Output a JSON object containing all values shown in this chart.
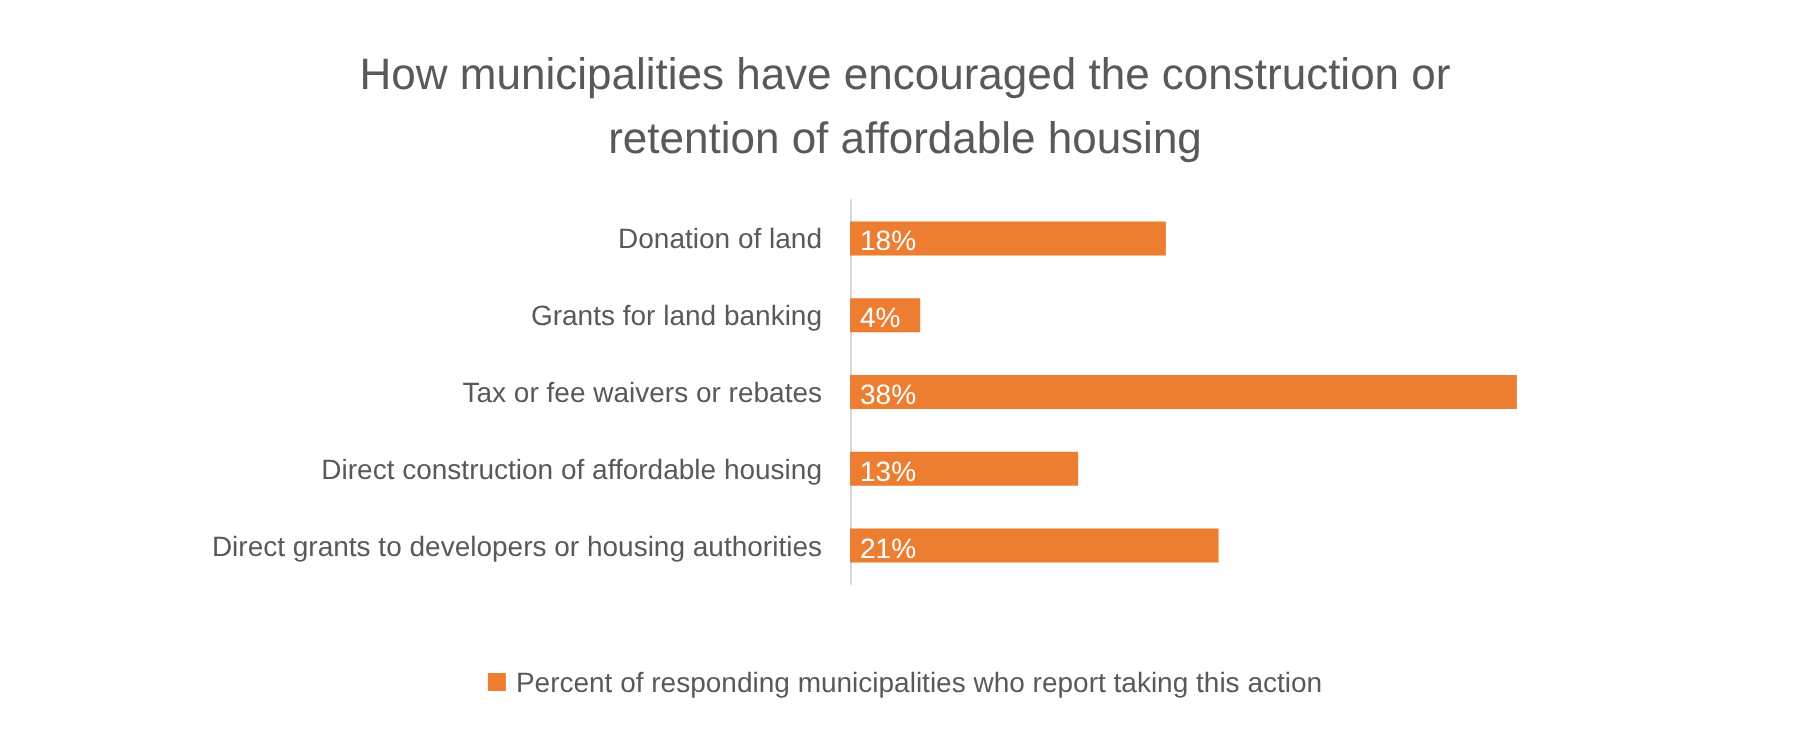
{
  "chart_data": {
    "type": "bar",
    "orientation": "horizontal",
    "title": "How municipalities have encouraged the construction or\nretention of affordable housing",
    "categories": [
      "Donation of land",
      "Grants for land banking",
      "Tax or fee waivers or rebates",
      "Direct construction of affordable housing",
      "Direct grants to developers or housing authorities"
    ],
    "series": [
      {
        "name": "Percent of responding municipalities who report taking this action",
        "color": "#ed7d31",
        "values": [
          18,
          4,
          38,
          13,
          21
        ],
        "value_labels": [
          "18%",
          "4%",
          "38%",
          "13%",
          "21%"
        ]
      }
    ],
    "legend": "bottom",
    "grid": false
  }
}
